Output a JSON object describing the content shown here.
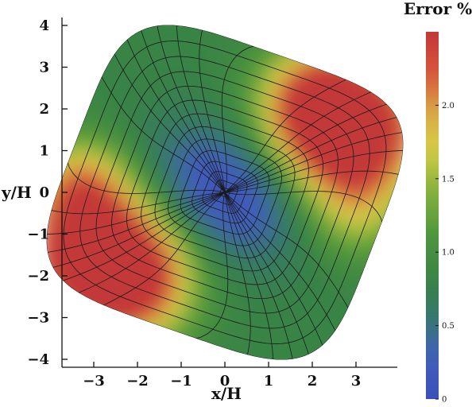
{
  "chart_data": {
    "type": "heatmap",
    "title": "",
    "xlabel": "x/H",
    "ylabel": "y/H",
    "xlim": [
      -3.8,
      3.9
    ],
    "ylim": [
      -4.1,
      4.1
    ],
    "xticks": [
      -3,
      -2,
      -1,
      0,
      1,
      2,
      3
    ],
    "yticks": [
      -4,
      -3,
      -2,
      -1,
      0,
      1,
      2,
      3,
      4
    ],
    "xtick_labels": [
      "−3",
      "−2",
      "−1",
      "0",
      "1",
      "2",
      "3"
    ],
    "ytick_labels": [
      "−4",
      "−3",
      "−2",
      "−1",
      "0",
      "1",
      "2",
      "3",
      "4"
    ],
    "colorbar": {
      "title": "Error %",
      "range": [
        0,
        2.5
      ],
      "ticks": [
        0,
        0.5,
        1.0,
        1.5,
        2.0
      ],
      "tick_labels": [
        "0",
        "0.5",
        "1.0",
        "1.5",
        "2.0"
      ]
    },
    "field": {
      "description": "Error field over a rounded-square domain rotated about 20 degrees; low error near center, peaks near corners",
      "center": [
        0,
        0
      ],
      "rotation_deg": -20,
      "half_extent": 3.55,
      "error_levels": [
        {
          "location": "center (0, 0)",
          "value": 0.05
        },
        {
          "location": "central band (±1.5)",
          "value": 0.3
        },
        {
          "location": "left-top corner (-2.5, 3)",
          "value": 1.0
        },
        {
          "location": "right-top corner (2.8, 1.5)",
          "value": 2.4
        },
        {
          "location": "left-bottom corner (-3, -1.5)",
          "value": 2.4
        },
        {
          "location": "right-bottom corner (2.5, -3)",
          "value": 0.9
        }
      ]
    },
    "mesh": {
      "radial_lines": 32,
      "rings": 14
    }
  }
}
